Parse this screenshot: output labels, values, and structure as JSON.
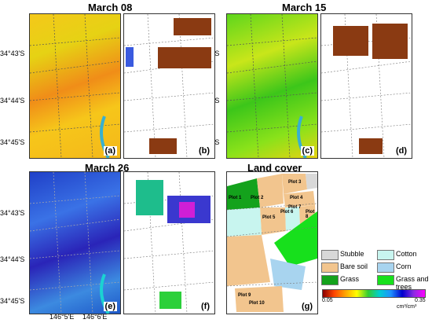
{
  "titles": {
    "a": "March 08",
    "c": "March 15",
    "e": "March 26",
    "g": "Land cover"
  },
  "panel_labels": {
    "a": "(a)",
    "b": "(b)",
    "c": "(c)",
    "d": "(d)",
    "e": "(e)",
    "f": "(f)",
    "g": "(g)"
  },
  "lat_labels": [
    "34°43'S",
    "34°44'S",
    "34°45'S"
  ],
  "lon_labels": [
    "146°5'E",
    "146°6'E"
  ],
  "plots": [
    "Plot 1",
    "Plot 2",
    "Plot 3",
    "Plot 4",
    "Plot 5",
    "Plot 6",
    "Plot 7",
    "Plot 8",
    "Plot 9",
    "Plot 10"
  ],
  "legend": {
    "items": [
      {
        "label": "Stubble",
        "color": "#d8d8d8"
      },
      {
        "label": "Cotton",
        "color": "#c8f5ef"
      },
      {
        "label": "Bare soil",
        "color": "#f2c58e"
      },
      {
        "label": "Corn",
        "color": "#a8d4ef"
      },
      {
        "label": "Grass",
        "color": "#14a21c"
      },
      {
        "label": "Grass and trees",
        "color": "#17e01c"
      }
    ],
    "colorbar_min": "0.05",
    "colorbar_max": "0.35",
    "colorbar_unit": "cm³/cm³"
  }
}
